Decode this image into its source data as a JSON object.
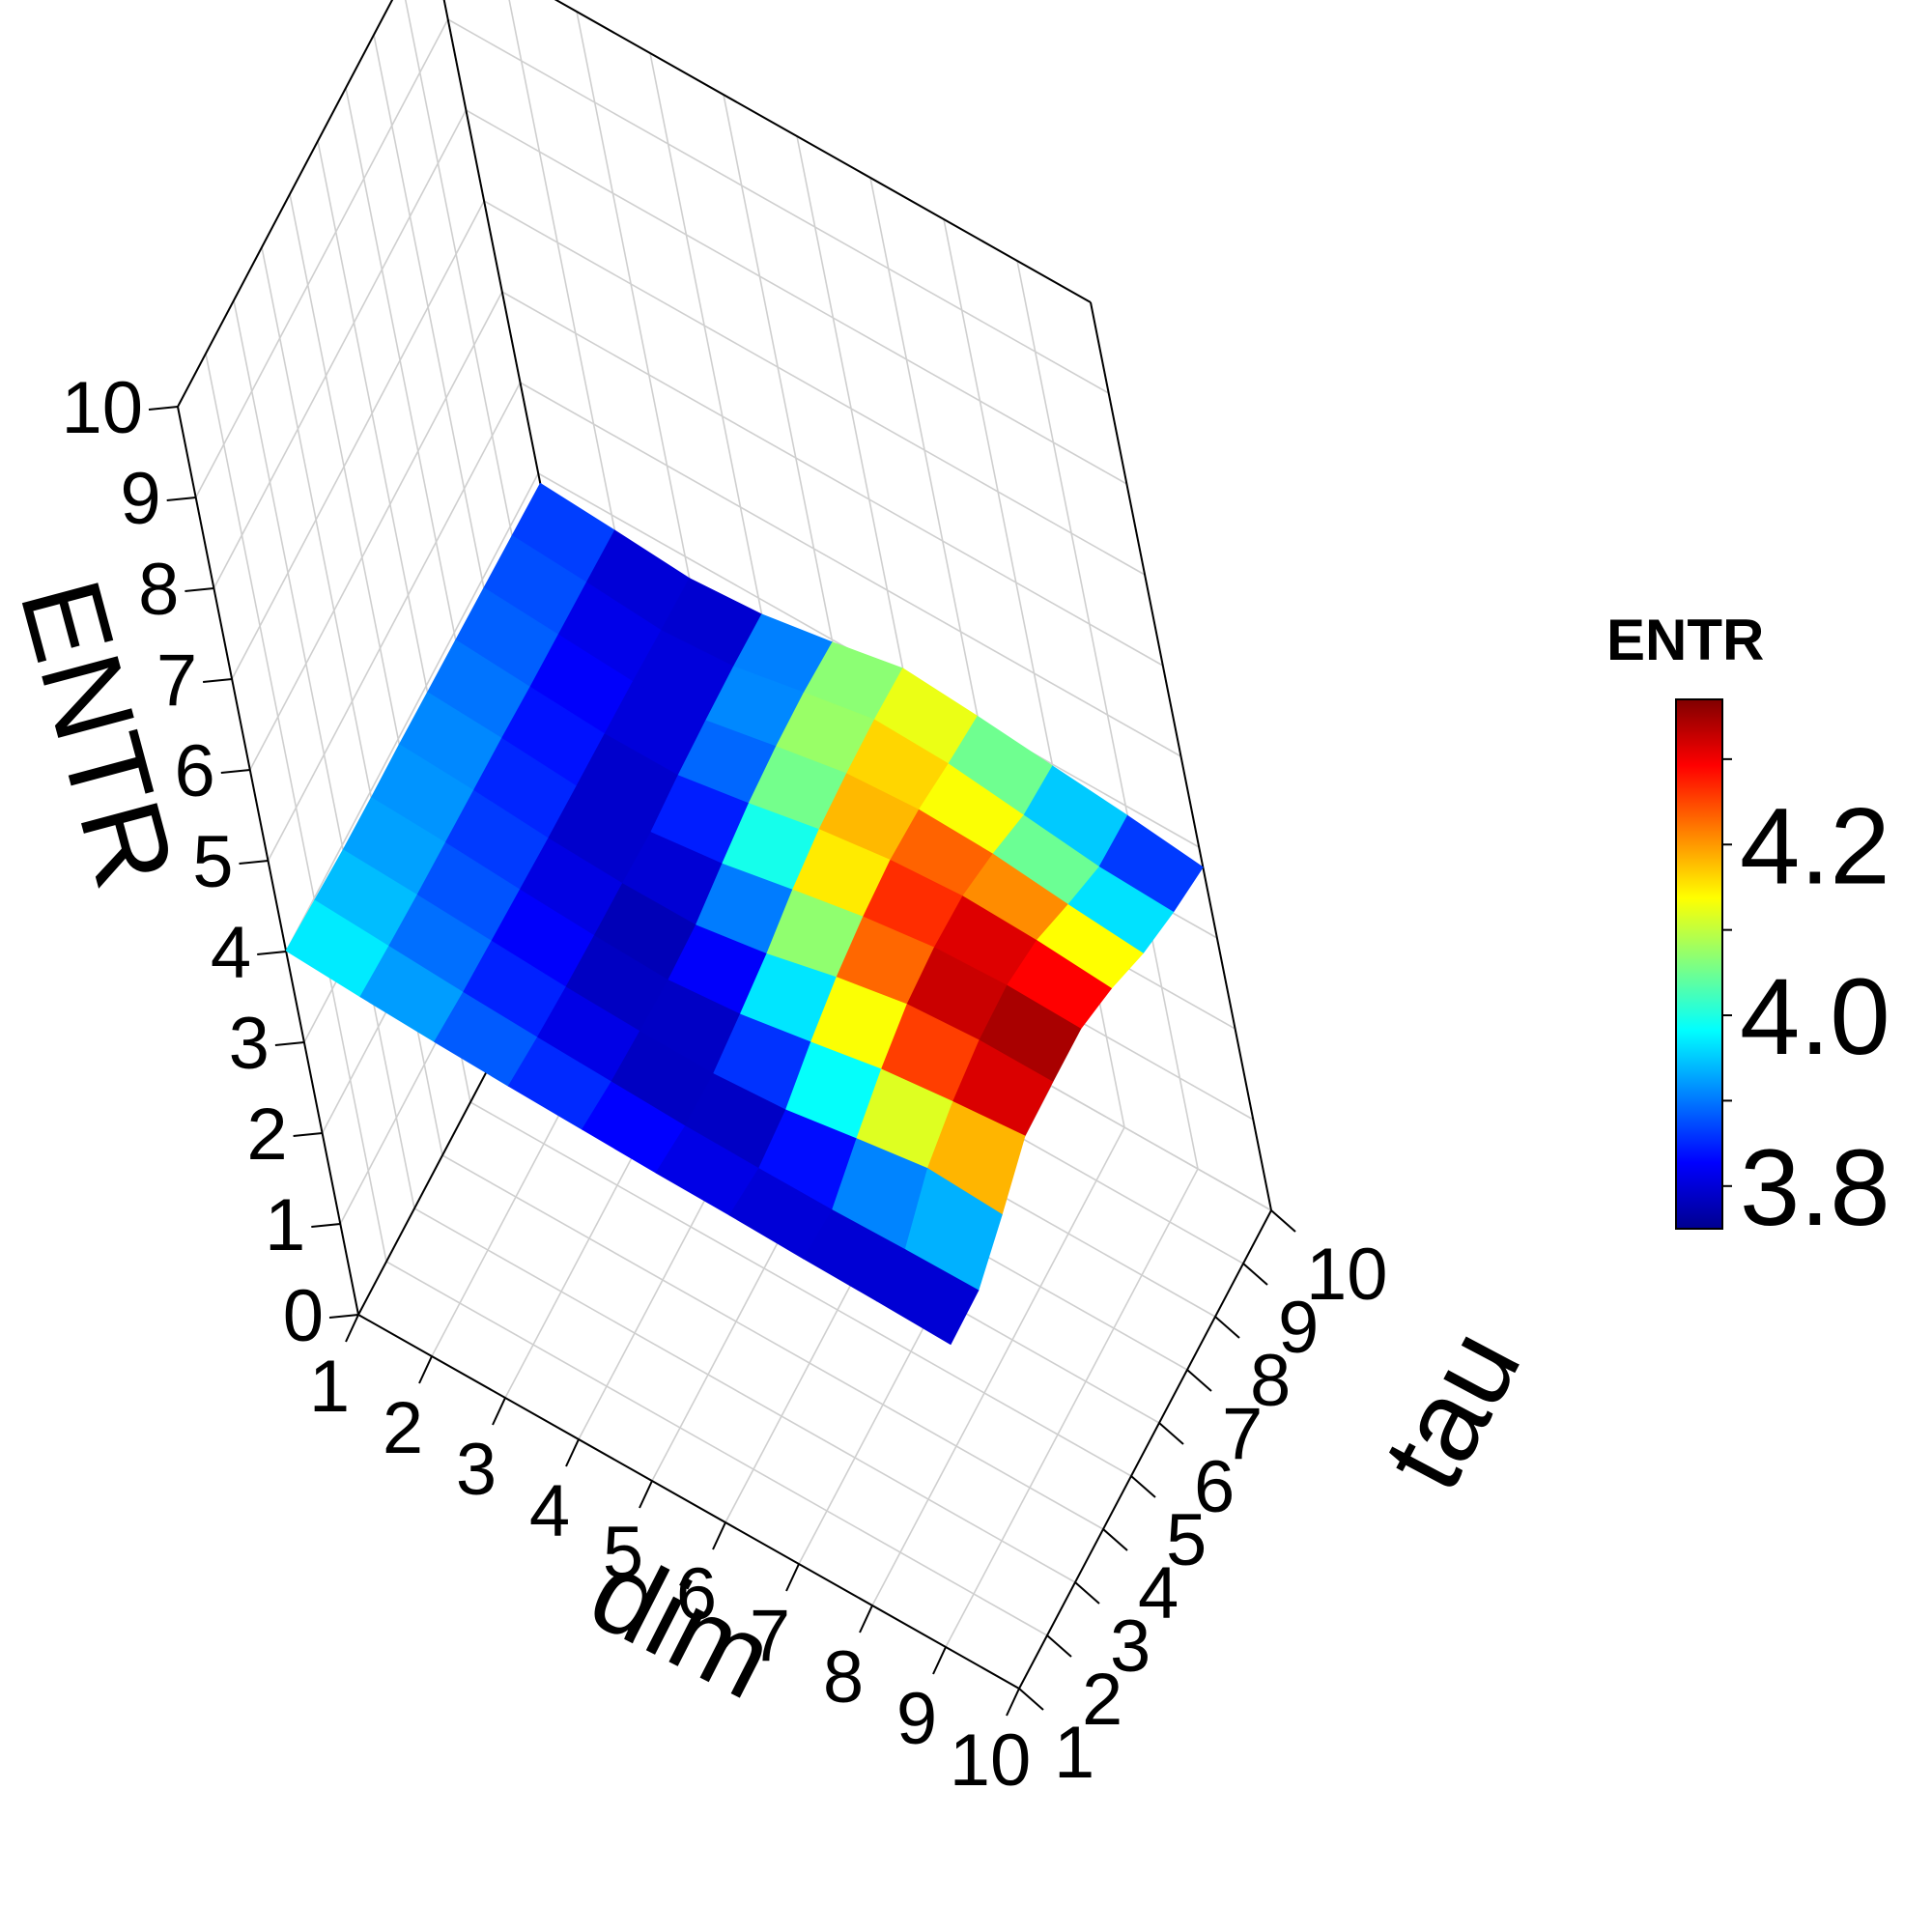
{
  "chart_data": {
    "type": "surface3d",
    "xlabel": "dim",
    "ylabel": "tau",
    "zlabel": "ENTR",
    "x_ticks": [
      "1",
      "2",
      "3",
      "4",
      "5",
      "6",
      "7",
      "8",
      "9",
      "10"
    ],
    "y_ticks": [
      "1",
      "2",
      "3",
      "4",
      "5",
      "6",
      "7",
      "8",
      "9",
      "10"
    ],
    "z_ticks": [
      "0",
      "1",
      "2",
      "3",
      "4",
      "5",
      "6",
      "7",
      "8",
      "9",
      "10"
    ],
    "xlim": [
      1,
      10
    ],
    "ylim": [
      1,
      10
    ],
    "zlim": [
      0,
      10
    ],
    "colorbar": {
      "title": "ENTR",
      "min": 3.75,
      "max": 4.37,
      "tick_labels": [
        "3.8",
        "4.0",
        "4.2"
      ],
      "colormap": [
        "#00008f",
        "#0000ff",
        "#0080ff",
        "#00ffff",
        "#80ff80",
        "#ffff00",
        "#ff8000",
        "#ff0000",
        "#800000"
      ]
    },
    "grid": true,
    "note_rows": "values[tau-1][dim-1], ENTR per (dim, tau) cell",
    "values": [
      [
        4.01,
        3.96,
        3.92,
        3.89,
        3.87,
        3.85,
        3.84,
        3.82,
        3.81,
        3.79
      ],
      [
        3.98,
        3.93,
        3.88,
        3.84,
        3.81,
        3.78,
        3.77,
        3.77,
        3.79,
        3.8
      ],
      [
        3.95,
        3.91,
        3.86,
        3.81,
        3.78,
        3.77,
        3.83,
        3.97,
        4.1,
        4.05
      ],
      [
        3.94,
        3.9,
        3.84,
        3.79,
        3.76,
        3.84,
        3.99,
        4.15,
        4.25,
        4.33
      ],
      [
        3.94,
        3.89,
        3.82,
        3.78,
        3.78,
        3.92,
        4.12,
        4.28,
        4.34,
        4.34
      ],
      [
        3.93,
        3.88,
        3.81,
        3.76,
        3.87,
        4.04,
        4.2,
        4.32,
        4.36,
        4.34
      ],
      [
        3.92,
        3.86,
        3.8,
        3.8,
        3.95,
        4.12,
        4.24,
        4.3,
        4.27,
        4.2
      ],
      [
        3.91,
        3.85,
        3.79,
        3.82,
        3.99,
        4.15,
        4.21,
        4.18,
        4.08,
        4.0
      ],
      [
        3.9,
        3.84,
        3.77,
        3.83,
        4.0,
        4.16,
        4.13,
        4.02,
        3.91,
        3.87
      ],
      [
        3.89,
        3.83,
        3.76,
        3.82,
        3.97,
        4.14,
        4.07,
        3.98,
        3.89,
        3.78
      ]
    ]
  }
}
